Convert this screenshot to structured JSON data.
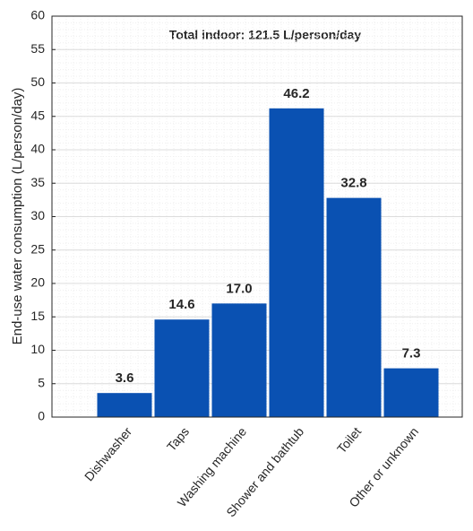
{
  "chart_data": {
    "type": "bar",
    "annotation": "Total indoor: 121.5 L/person/day",
    "ylabel": "End-use water consumption (L/person/day)",
    "categories": [
      "Dishwasher",
      "Taps",
      "Washing machine",
      "Shower and bathtub",
      "Toilet",
      "Other or unknown"
    ],
    "values": [
      3.6,
      14.6,
      17.0,
      46.2,
      32.8,
      7.3
    ],
    "value_labels": [
      "3.6",
      "14.6",
      "17.0",
      "46.2",
      "32.8",
      "7.3"
    ],
    "color": "#0a51b2",
    "ylim": [
      0,
      60
    ],
    "yticks": [
      0,
      5,
      10,
      15,
      20,
      25,
      30,
      35,
      40,
      45,
      50,
      55,
      60
    ],
    "grid": true,
    "minor_grid": true
  }
}
